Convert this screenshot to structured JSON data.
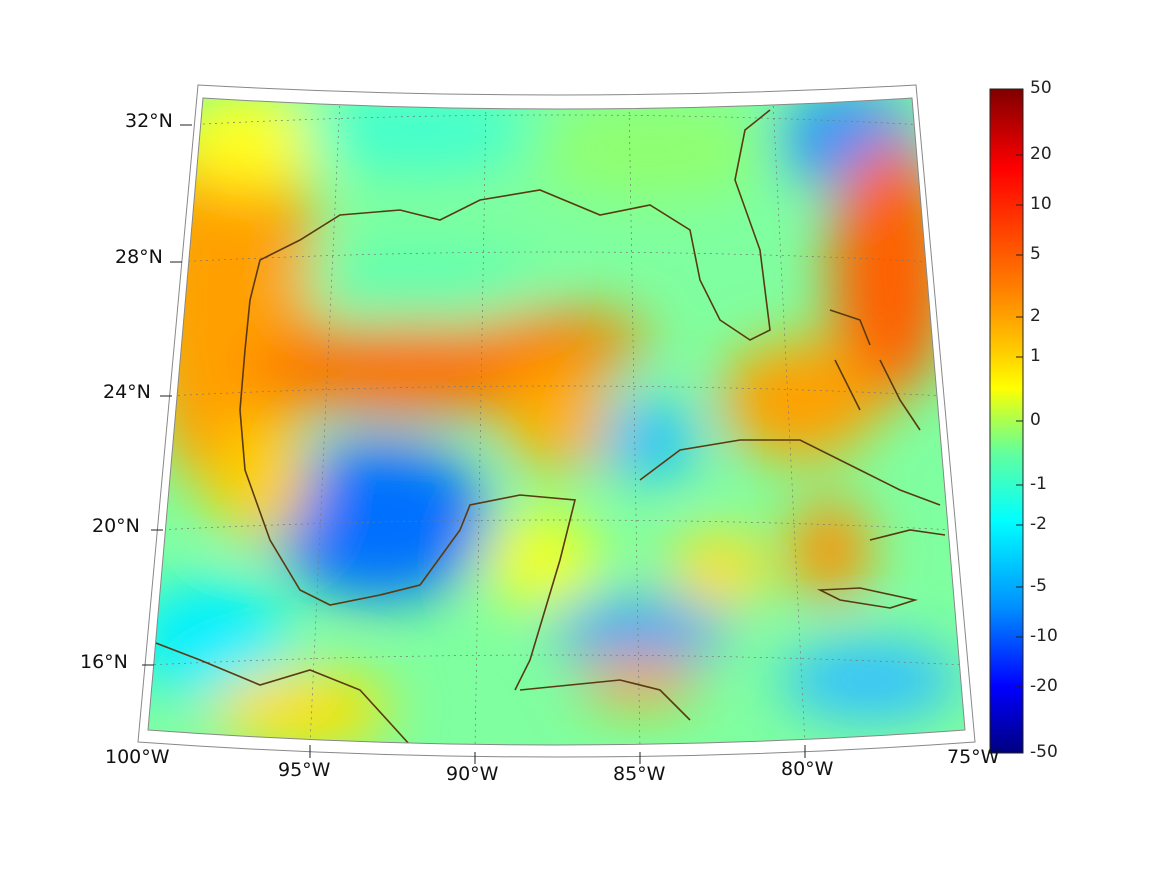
{
  "map": {
    "lat_labels": [
      "32°N",
      "28°N",
      "24°N",
      "20°N",
      "16°N"
    ],
    "lon_labels": [
      "100°W",
      "95°W",
      "90°W",
      "85°W",
      "80°W",
      "75°W"
    ]
  },
  "colorbar": {
    "ticks": [
      "50",
      "20",
      "10",
      "5",
      "2",
      "1",
      "0",
      "-1",
      "-2",
      "-5",
      "-10",
      "-20",
      "-50"
    ],
    "colors": [
      "#800000",
      "#ff0000",
      "#ff8000",
      "#ffff00",
      "#80ff80",
      "#00ffff",
      "#0080ff",
      "#0000ff",
      "#000080"
    ]
  },
  "coastline_color": "#5a3a10"
}
